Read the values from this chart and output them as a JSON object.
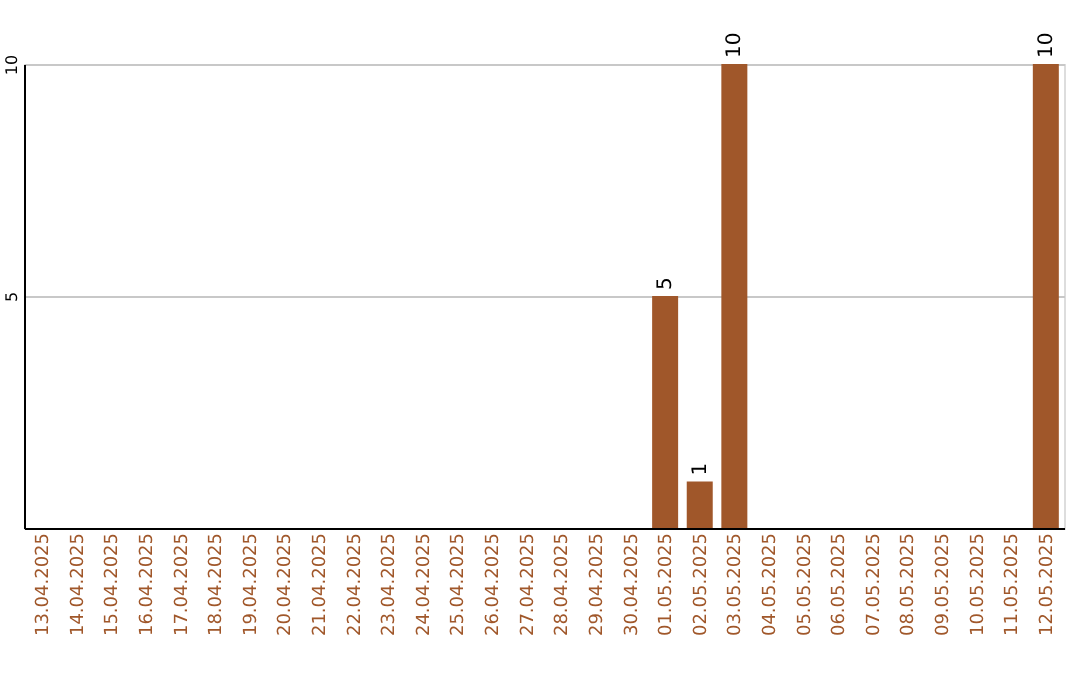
{
  "chart_data": {
    "type": "bar",
    "categories": [
      "13.04.2025",
      "14.04.2025",
      "15.04.2025",
      "16.04.2025",
      "17.04.2025",
      "18.04.2025",
      "19.04.2025",
      "20.04.2025",
      "21.04.2025",
      "22.04.2025",
      "23.04.2025",
      "24.04.2025",
      "25.04.2025",
      "26.04.2025",
      "27.04.2025",
      "28.04.2025",
      "29.04.2025",
      "30.04.2025",
      "01.05.2025",
      "02.05.2025",
      "03.05.2025",
      "04.05.2025",
      "05.05.2025",
      "06.05.2025",
      "07.05.2025",
      "08.05.2025",
      "09.05.2025",
      "10.05.2025",
      "11.05.2025",
      "12.05.2025"
    ],
    "values": [
      0,
      0,
      0,
      0,
      0,
      0,
      0,
      0,
      0,
      0,
      0,
      0,
      0,
      0,
      0,
      0,
      0,
      0,
      5,
      1,
      10,
      0,
      0,
      0,
      0,
      0,
      0,
      0,
      0,
      10
    ],
    "value_labels": [
      null,
      null,
      null,
      null,
      null,
      null,
      null,
      null,
      null,
      null,
      null,
      null,
      null,
      null,
      null,
      null,
      null,
      null,
      "5",
      "1",
      "10",
      null,
      null,
      null,
      null,
      null,
      null,
      null,
      null,
      "10"
    ],
    "color": "#a0572a",
    "ylim": [
      0,
      10
    ],
    "yticks": [
      5,
      10
    ],
    "grid": "y"
  }
}
